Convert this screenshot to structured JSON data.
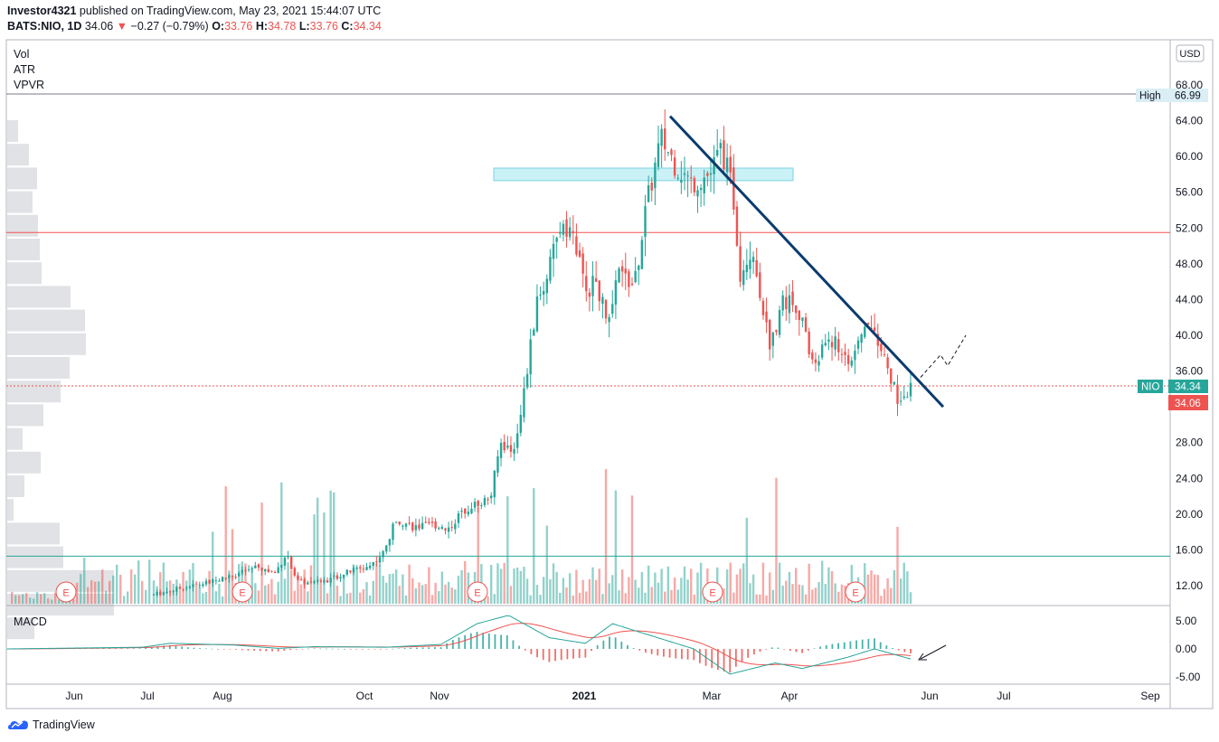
{
  "header": {
    "publisher": "Investor4321",
    "published_text": "published on TradingView.com, May 23, 2021 15:44:07 UTC",
    "symbol": "BATS:NIO, 1D",
    "last": "34.06",
    "change": "−0.27 (−0.79%)",
    "open_label": "O:",
    "open": "33.76",
    "high_label": "H:",
    "high": "34.78",
    "low_label": "L:",
    "low": "33.76",
    "close_label": "C:",
    "close": "34.34"
  },
  "indicators": [
    "Vol",
    "ATR",
    "VPVR"
  ],
  "macd_label": "MACD",
  "currency": "USD",
  "price_badges": {
    "high_label": "High",
    "high_value": "66.99",
    "symbol_label": "NIO",
    "symbol_value": "34.34",
    "last_value": "34.06"
  },
  "footer": {
    "brand": "TradingView"
  },
  "colors": {
    "up": "#26a69a",
    "down": "#ef5350",
    "trendline": "#0b3b6e",
    "resistance": "#ef5350",
    "support": "#26a69a",
    "zone": "#b2ebf2"
  },
  "chart_data": {
    "type": "candlestick",
    "x_ticks": [
      "Jun",
      "Jul",
      "Aug",
      "Oct",
      "Nov",
      "2021",
      "Mar",
      "Apr",
      "Jun",
      "Jul",
      "Sep"
    ],
    "y_ticks": [
      "68.00",
      "64.00",
      "60.00",
      "56.00",
      "52.00",
      "48.00",
      "44.00",
      "40.00",
      "36.00",
      "32.00",
      "28.00",
      "24.00",
      "20.00",
      "16.00",
      "12.00"
    ],
    "ylim": [
      9.5,
      70
    ],
    "macd_ticks": [
      "5.00",
      "0.00",
      "-5.00"
    ],
    "earnings_marker": "E",
    "earnings_dates": [
      "Jun",
      "Aug",
      "Nov",
      "Mar",
      "Apr"
    ],
    "price_path": [
      [
        0,
        11.0
      ],
      [
        0.04,
        11.8
      ],
      [
        0.08,
        12.5
      ],
      [
        0.11,
        13.3
      ],
      [
        0.135,
        14.0
      ],
      [
        0.16,
        13.4
      ],
      [
        0.175,
        15.5
      ],
      [
        0.19,
        12.5
      ],
      [
        0.21,
        12.2
      ],
      [
        0.235,
        12.8
      ],
      [
        0.265,
        13.8
      ],
      [
        0.285,
        14.2
      ],
      [
        0.305,
        15.8
      ],
      [
        0.32,
        19.5
      ],
      [
        0.345,
        18.5
      ],
      [
        0.37,
        18.8
      ],
      [
        0.39,
        18.4
      ],
      [
        0.41,
        20.5
      ],
      [
        0.43,
        21.3
      ],
      [
        0.445,
        21.8
      ],
      [
        0.458,
        28.0
      ],
      [
        0.475,
        27.0
      ],
      [
        0.49,
        34.0
      ],
      [
        0.505,
        43.0
      ],
      [
        0.525,
        48.0
      ],
      [
        0.54,
        53.0
      ],
      [
        0.555,
        51.0
      ],
      [
        0.57,
        45.0
      ],
      [
        0.585,
        46.0
      ],
      [
        0.6,
        41.0
      ],
      [
        0.615,
        47.0
      ],
      [
        0.635,
        45.5
      ],
      [
        0.65,
        54.0
      ],
      [
        0.67,
        62.0
      ],
      [
        0.69,
        59.0
      ],
      [
        0.71,
        57.0
      ],
      [
        0.735,
        58.0
      ],
      [
        0.75,
        61.0
      ],
      [
        0.765,
        56.0
      ],
      [
        0.775,
        47.0
      ],
      [
        0.79,
        50.0
      ],
      [
        0.805,
        43.0
      ],
      [
        0.815,
        38.5
      ],
      [
        0.83,
        44.0
      ],
      [
        0.85,
        43.5
      ],
      [
        0.865,
        38.5
      ],
      [
        0.875,
        36.5
      ],
      [
        0.89,
        40.0
      ],
      [
        0.91,
        38.0
      ],
      [
        0.925,
        37.0
      ],
      [
        0.94,
        41.5
      ],
      [
        0.955,
        40.0
      ],
      [
        0.97,
        36.0
      ],
      [
        0.985,
        32.5
      ],
      [
        1.0,
        34.06
      ]
    ],
    "price_levels": {
      "high": 66.99,
      "resistance": 51.5,
      "current_dotted": 34.34,
      "support": 15.3,
      "zone_low": 57.3,
      "zone_high": 58.7
    },
    "trendline": {
      "start": [
        "Feb",
        64.5
      ],
      "end": [
        "Jun",
        32.0
      ]
    },
    "macd_range": [
      -6,
      7
    ],
    "macd_path": [
      [
        0,
        0
      ],
      [
        0.15,
        0.3
      ],
      [
        0.18,
        1.0
      ],
      [
        0.25,
        0.7
      ],
      [
        0.3,
        0.1
      ],
      [
        0.34,
        0.4
      ],
      [
        0.42,
        0.3
      ],
      [
        0.48,
        0.8
      ],
      [
        0.52,
        4.5
      ],
      [
        0.555,
        6.0
      ],
      [
        0.6,
        2.0
      ],
      [
        0.64,
        1.0
      ],
      [
        0.67,
        4.5
      ],
      [
        0.7,
        3.0
      ],
      [
        0.76,
        0.0
      ],
      [
        0.8,
        -4.5
      ],
      [
        0.85,
        -2.5
      ],
      [
        0.88,
        -3.5
      ],
      [
        0.93,
        -1.5
      ],
      [
        0.96,
        0.0
      ],
      [
        1.0,
        -1.8
      ]
    ]
  }
}
